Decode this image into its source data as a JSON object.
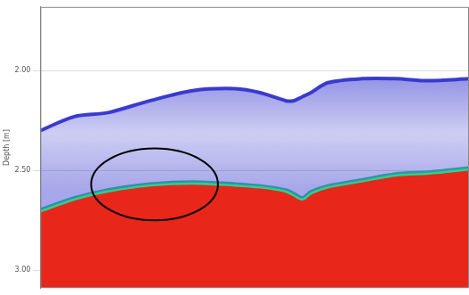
{
  "chart_data": {
    "type": "line",
    "y_label": "Depth [m]",
    "x": [
      0,
      40,
      80,
      130,
      180,
      230,
      260,
      290,
      300,
      310,
      320,
      340,
      380,
      420,
      460,
      507
    ],
    "xlim": [
      0,
      507
    ],
    "ylim": [
      3.09,
      1.68
    ],
    "yticks": [
      {
        "value": 2.0,
        "label": "2.00"
      },
      {
        "value": 2.5,
        "label": "2.50"
      },
      {
        "value": 3.0,
        "label": "3.00"
      }
    ],
    "grid": true,
    "tick_labels": "y",
    "series": [
      {
        "color": "#3a3ad0",
        "values": [
          2.3,
          2.23,
          2.21,
          2.15,
          2.1,
          2.09,
          2.11,
          2.15,
          2.15,
          2.13,
          2.11,
          2.06,
          2.04,
          2.04,
          2.05,
          2.04
        ]
      },
      {
        "color": "#e8261a",
        "values": [
          2.7,
          2.64,
          2.6,
          2.57,
          2.56,
          2.57,
          2.58,
          2.6,
          2.62,
          2.64,
          2.61,
          2.58,
          2.55,
          2.52,
          2.51,
          2.49
        ]
      }
    ],
    "highlight": {
      "x_center": 135,
      "y_center": 2.57,
      "x_radius": 75,
      "y_radius": 0.18
    }
  }
}
